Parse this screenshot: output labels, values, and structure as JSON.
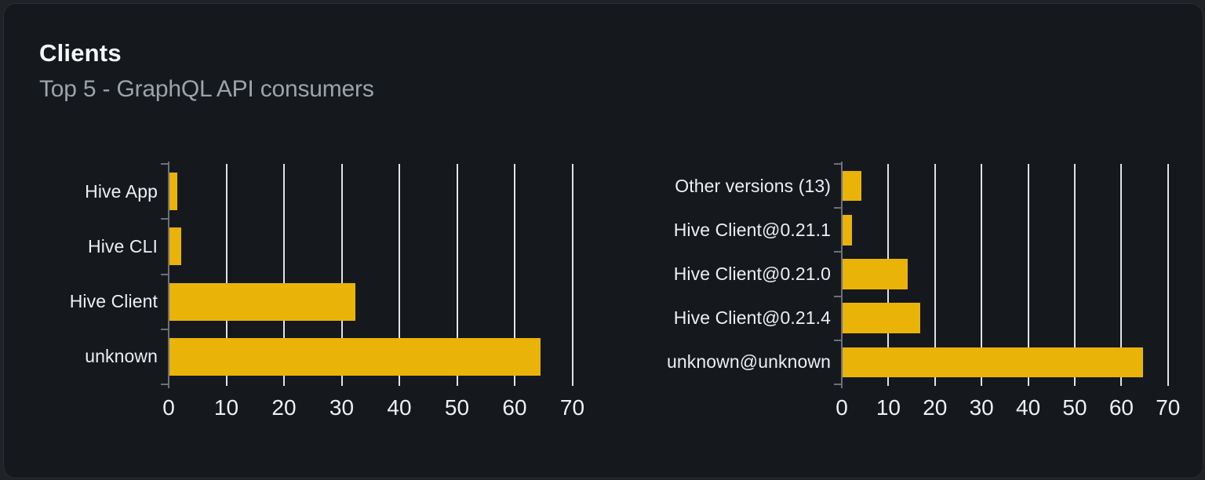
{
  "card": {
    "title": "Clients",
    "subtitle": "Top 5 - GraphQL API consumers"
  },
  "chart_data": [
    {
      "type": "bar",
      "orientation": "horizontal",
      "categories": [
        "Hive App",
        "Hive CLI",
        "Hive Client",
        "unknown"
      ],
      "values": [
        1.4,
        2,
        32.2,
        64.4
      ],
      "xlim": [
        0,
        70
      ],
      "xticks": [
        0,
        10,
        20,
        30,
        40,
        50,
        60,
        70
      ],
      "grid": true,
      "legend": "none",
      "bar_color": "#eab308"
    },
    {
      "type": "bar",
      "orientation": "horizontal",
      "categories": [
        "Other versions (13)",
        "Hive Client@0.21.1",
        "Hive Client@0.21.0",
        "Hive Client@0.21.4",
        "unknown@unknown"
      ],
      "values": [
        4.1,
        2,
        14,
        16.7,
        64.4
      ],
      "xlim": [
        0,
        70
      ],
      "xticks": [
        0,
        10,
        20,
        30,
        40,
        50,
        60,
        70
      ],
      "grid": true,
      "legend": "none",
      "bar_color": "#eab308"
    }
  ],
  "colors": {
    "bar": "#eab308",
    "card_background": "#15181d",
    "page_background": "#202227",
    "card_border": "#2a2d33",
    "gridline": "#dfe2e7",
    "axis": "#6d7177",
    "title_text": "#f7f8fa",
    "subtitle_text": "#9da3ab",
    "label_text": "#edeff2"
  }
}
